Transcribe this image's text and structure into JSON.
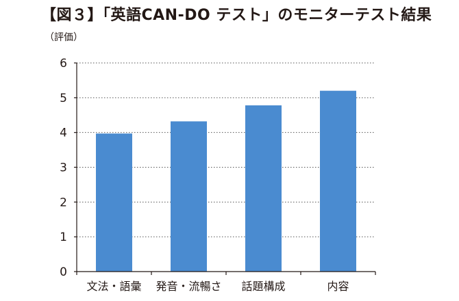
{
  "header": {
    "title": "【図３】「英語CAN-DO テスト」のモニターテスト結果",
    "unit": "（評価）"
  },
  "colors": {
    "bar": "#4a8bd0",
    "axis": "#231815",
    "grid": "#555555"
  },
  "chart_data": {
    "type": "bar",
    "title": "【図３】「英語CAN-DO テスト」のモニターテスト結果",
    "xlabel": "",
    "ylabel": "（評価）",
    "categories": [
      "文法・語彙",
      "発音・流暢さ",
      "話題構成",
      "内容"
    ],
    "values": [
      3.97,
      4.32,
      4.78,
      5.2
    ],
    "ylim": [
      0,
      6
    ],
    "yticks": [
      0,
      1,
      2,
      3,
      4,
      5,
      6
    ],
    "grid": true,
    "grid_style": "dotted",
    "legend": "none"
  }
}
